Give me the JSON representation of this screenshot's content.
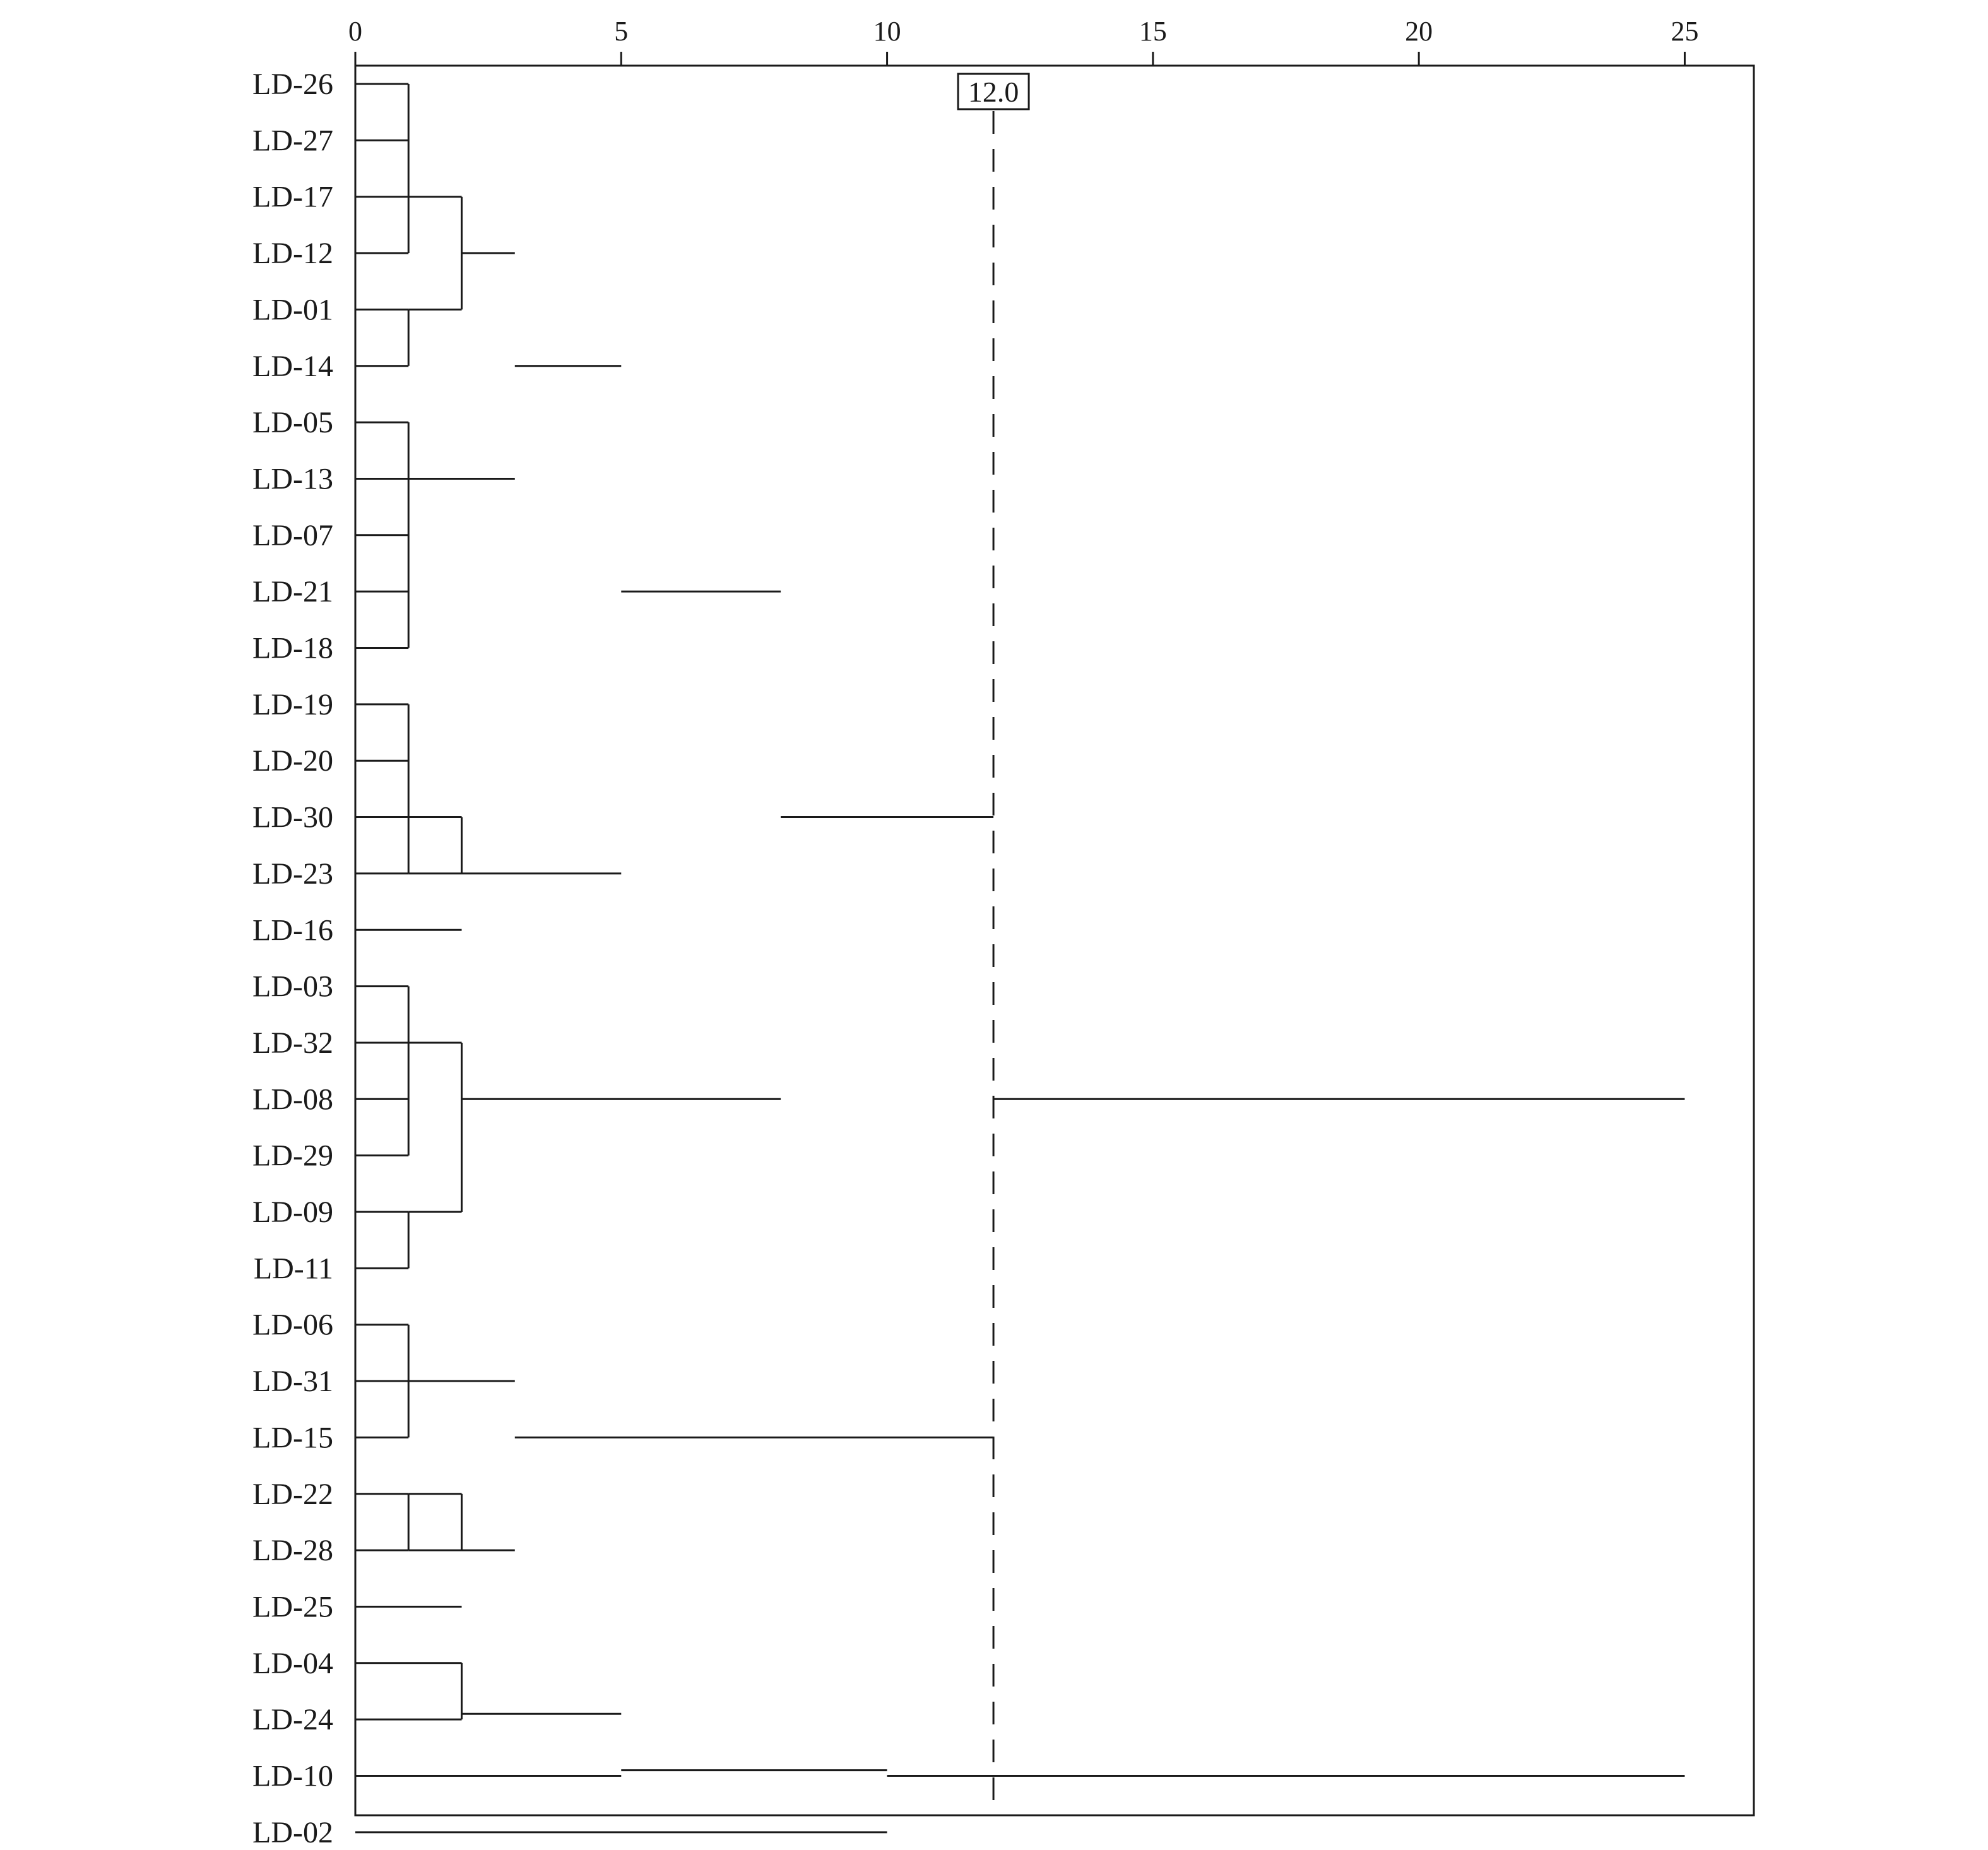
{
  "chart_data": {
    "type": "dendrogram",
    "title": "",
    "xlabel": "",
    "ylabel": "",
    "xlim": [
      0,
      26.3
    ],
    "x_ticks": [
      0,
      5,
      10,
      15,
      20,
      25
    ],
    "x_tick_labels": [
      "0",
      "5",
      "10",
      "15",
      "20",
      "25"
    ],
    "axis_position": "top",
    "leaves": [
      "LD-26",
      "LD-27",
      "LD-17",
      "LD-12",
      "LD-01",
      "LD-14",
      "LD-05",
      "LD-13",
      "LD-07",
      "LD-21",
      "LD-18",
      "LD-19",
      "LD-20",
      "LD-30",
      "LD-23",
      "LD-16",
      "LD-03",
      "LD-32",
      "LD-08",
      "LD-29",
      "LD-09",
      "LD-11",
      "LD-06",
      "LD-31",
      "LD-15",
      "LD-22",
      "LD-28",
      "LD-25",
      "LD-04",
      "LD-24",
      "LD-10",
      "LD-02"
    ],
    "merges": [
      {
        "children": [
          "LD-26",
          "LD-27",
          "LD-17",
          "LD-12"
        ],
        "height": 1
      },
      {
        "children": [
          "LD-01",
          "LD-14"
        ],
        "height": 1
      },
      {
        "children": [
          "LD-05",
          "LD-13",
          "LD-07",
          "LD-21",
          "LD-18"
        ],
        "height": 1
      },
      {
        "children": [
          "LD-19",
          "LD-20",
          "LD-30",
          "LD-23"
        ],
        "height": 1
      },
      {
        "children": [
          "LD-03",
          "LD-32",
          "LD-08",
          "LD-29"
        ],
        "height": 1
      },
      {
        "children": [
          "LD-09",
          "LD-11"
        ],
        "height": 1
      },
      {
        "children": [
          "LD-06",
          "LD-31",
          "LD-15"
        ],
        "height": 1
      },
      {
        "children": [
          "LD-22",
          "LD-28"
        ],
        "height": 1
      },
      {
        "children": [
          "{LD-26..LD-12}",
          "{LD-01,LD-14}"
        ],
        "height": 2
      },
      {
        "children": [
          "{LD-19..LD-23}",
          "LD-16"
        ],
        "height": 2
      },
      {
        "children": [
          "{LD-03..LD-29}",
          "{LD-09,LD-11}"
        ],
        "height": 2
      },
      {
        "children": [
          "{LD-22,LD-28}",
          "LD-25"
        ],
        "height": 2
      },
      {
        "children": [
          "LD-04",
          "LD-24"
        ],
        "height": 2
      },
      {
        "children": [
          "{LD-26..LD-14}",
          "{LD-05..LD-18}"
        ],
        "height": 3
      },
      {
        "children": [
          "{LD-06..LD-15}",
          "{LD-22..LD-25}"
        ],
        "height": 3
      },
      {
        "children": [
          "{LD-26..LD-18}",
          "{LD-19..LD-16}"
        ],
        "height": 5
      },
      {
        "children": [
          "{LD-04,LD-24}",
          "LD-10"
        ],
        "height": 5
      },
      {
        "children": [
          "{LD-26..LD-16}",
          "{LD-03..LD-11}"
        ],
        "height": 8
      },
      {
        "children": [
          "{LD-04,LD-24,LD-10}",
          "LD-02"
        ],
        "height": 10
      },
      {
        "children": [
          "{LD-26..LD-11}",
          "{LD-06..LD-25}"
        ],
        "height": 12
      },
      {
        "children": [
          "{LD-26..LD-25}",
          "{LD-04..LD-02}"
        ],
        "height": 25
      }
    ],
    "links": [
      {
        "from": 1,
        "to": 0,
        "rows": [
          0,
          1,
          2,
          3
        ]
      },
      {
        "from": 1,
        "to": 0,
        "rows": [
          4,
          5
        ]
      },
      {
        "from": 1,
        "to": 0,
        "rows": [
          6,
          7,
          8,
          9,
          10
        ]
      },
      {
        "from": 1,
        "to": 0,
        "rows": [
          11,
          12,
          13,
          14
        ]
      },
      {
        "from": 1,
        "to": 0,
        "rows": [
          16,
          17,
          18,
          19
        ]
      },
      {
        "from": 1,
        "to": 0,
        "rows": [
          20,
          21
        ]
      },
      {
        "from": 1,
        "to": 0,
        "rows": [
          22,
          23,
          24
        ]
      },
      {
        "from": 1,
        "to": 0,
        "rows": [
          25,
          26
        ]
      },
      {
        "from": 2,
        "to": 1,
        "rows": [
          2,
          4
        ]
      },
      {
        "from": 2,
        "to": 1,
        "rows": [
          13,
          14
        ]
      },
      {
        "from": 2,
        "to": 0,
        "rows": [
          15
        ]
      },
      {
        "from": 2,
        "to": 1,
        "rows": [
          17,
          20
        ]
      },
      {
        "from": 2,
        "to": 1,
        "rows": [
          25,
          26
        ]
      },
      {
        "from": 2,
        "to": 0,
        "rows": [
          27
        ]
      },
      {
        "from": 2,
        "to": 0,
        "rows": [
          28,
          29
        ]
      },
      {
        "from": 3,
        "to": 2,
        "rows": [
          3
        ]
      },
      {
        "from": 3,
        "to": 1,
        "rows": [
          7
        ]
      },
      {
        "from": 3,
        "to": 1,
        "rows": [
          23
        ]
      },
      {
        "from": 3,
        "to": 2,
        "rows": [
          26
        ]
      },
      {
        "from": 5,
        "to": 3,
        "rows": [
          5
        ]
      },
      {
        "from": 5,
        "to": 2,
        "rows": [
          14
        ]
      },
      {
        "from": 5,
        "to": 2,
        "rows": [
          28.9
        ]
      },
      {
        "from": 5,
        "to": 0,
        "rows": [
          30
        ]
      },
      {
        "from": 8,
        "to": 5,
        "rows": [
          9
        ]
      },
      {
        "from": 8,
        "to": 2,
        "rows": [
          18
        ]
      },
      {
        "from": 10,
        "to": 5,
        "rows": [
          29.9
        ]
      },
      {
        "from": 10,
        "to": 0,
        "rows": [
          31
        ]
      },
      {
        "from": 12,
        "to": 8,
        "rows": [
          13
        ]
      },
      {
        "from": 12,
        "to": 3,
        "rows": [
          24
        ]
      },
      {
        "from": 25,
        "to": 12,
        "rows": [
          18
        ]
      },
      {
        "from": 25,
        "to": 10,
        "rows": [
          30
        ]
      }
    ],
    "threshold": {
      "value": 12,
      "label": "12.0",
      "style": "dashed"
    },
    "grid": false,
    "legend": "none",
    "colors": {
      "line": "#1a1a1a",
      "background": "#ffffff"
    }
  }
}
